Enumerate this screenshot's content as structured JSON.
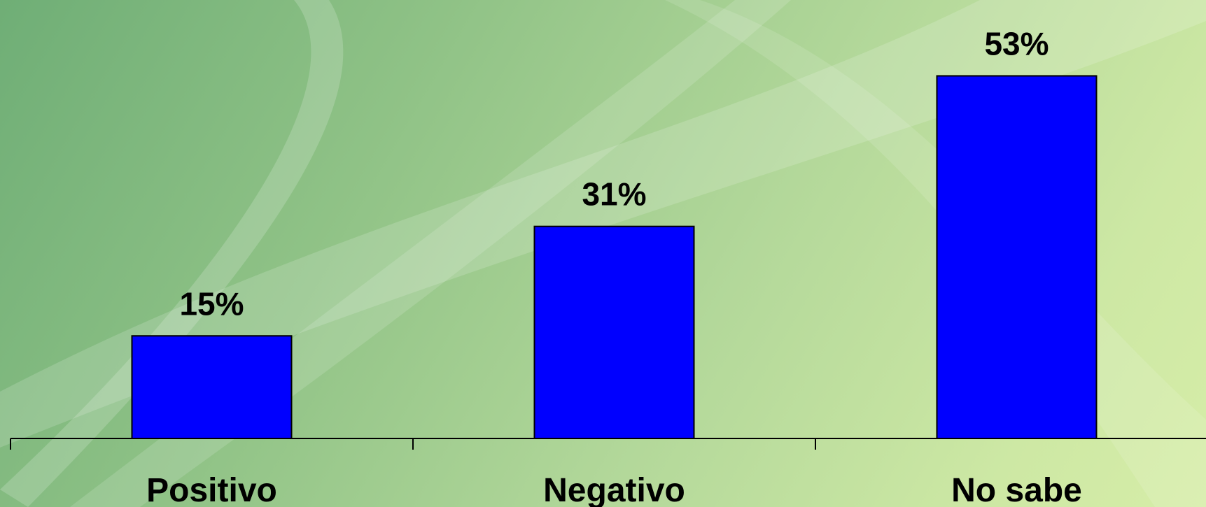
{
  "chart_data": {
    "type": "bar",
    "categories": [
      "Positivo",
      "Negativo",
      "No sabe"
    ],
    "values": [
      15,
      31,
      53
    ],
    "value_labels": [
      "15%",
      "31%",
      "53%"
    ],
    "title": "",
    "xlabel": "",
    "ylabel": "",
    "ylim": [
      0,
      60
    ],
    "grid": false,
    "legend": "none",
    "bar_color": "#0000ff",
    "bar_edge_color": "#000000",
    "axis_color": "#000000"
  }
}
